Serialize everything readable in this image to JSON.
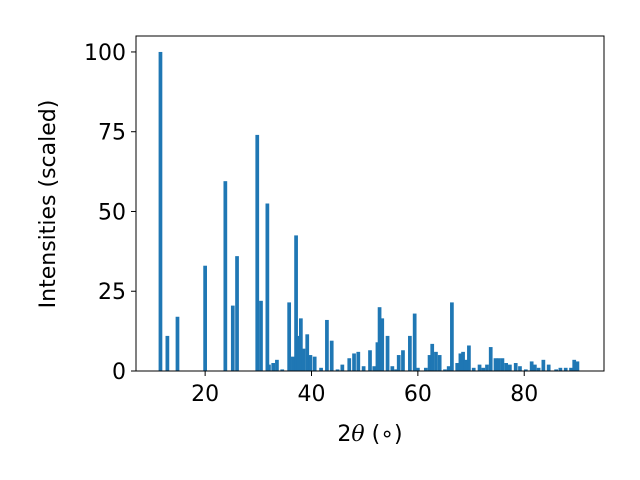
{
  "chart_data": {
    "type": "bar",
    "xlabel_prefix": "2",
    "xlabel_theta": "θ",
    "xlabel_unit": " (∘)",
    "ylabel": "Intensities (scaled)",
    "xlim": [
      7,
      95
    ],
    "ylim": [
      0,
      105
    ],
    "xticks": [
      20,
      40,
      60,
      80
    ],
    "yticks": [
      0,
      25,
      50,
      75,
      100
    ],
    "bar_color": "#1f77b4",
    "bar_width": 0.7,
    "x": [
      11.6,
      12.9,
      14.8,
      20.0,
      23.8,
      25.2,
      26.0,
      29.8,
      30.5,
      31.7,
      32.0,
      32.8,
      33.5,
      34.5,
      35.8,
      36.5,
      37.1,
      37.6,
      38.0,
      38.5,
      39.2,
      39.8,
      40.6,
      41.8,
      42.9,
      43.8,
      44.9,
      45.8,
      47.1,
      48.0,
      48.8,
      49.8,
      51.0,
      51.8,
      52.4,
      52.8,
      53.3,
      54.3,
      55.2,
      55.9,
      56.4,
      57.2,
      58.5,
      59.4,
      60.0,
      61.5,
      62.2,
      62.7,
      63.4,
      64.1,
      65.1,
      65.8,
      66.4,
      67.4,
      68.0,
      68.5,
      69.0,
      69.6,
      70.5,
      71.6,
      72.3,
      73.0,
      73.7,
      74.6,
      75.2,
      75.9,
      76.6,
      77.3,
      78.4,
      79.2,
      80.3,
      81.4,
      82.0,
      82.7,
      83.6,
      84.6,
      86.0,
      86.8,
      87.8,
      88.8,
      89.4,
      90.0
    ],
    "values": [
      100,
      11,
      17,
      33,
      59.5,
      20.5,
      36,
      74,
      22,
      52.5,
      2,
      2.5,
      3.5,
      0.5,
      21.5,
      4.5,
      42.5,
      11,
      16.5,
      7,
      11.5,
      5,
      4.5,
      1,
      16,
      9.5,
      0.5,
      2,
      4,
      5.5,
      6,
      1.5,
      6.5,
      1.5,
      9,
      20,
      16.5,
      11,
      1.5,
      0.5,
      5,
      6.5,
      11,
      18,
      1,
      1,
      5,
      8.5,
      6,
      5,
      0.5,
      1.5,
      21.5,
      2.5,
      5.5,
      6,
      3.5,
      8,
      1,
      2,
      1,
      2,
      7.5,
      4,
      4,
      4,
      2.5,
      2,
      2.5,
      1.5,
      0.5,
      3,
      2,
      1,
      3.5,
      2,
      0.5,
      1,
      1,
      1,
      3.5,
      3
    ]
  }
}
